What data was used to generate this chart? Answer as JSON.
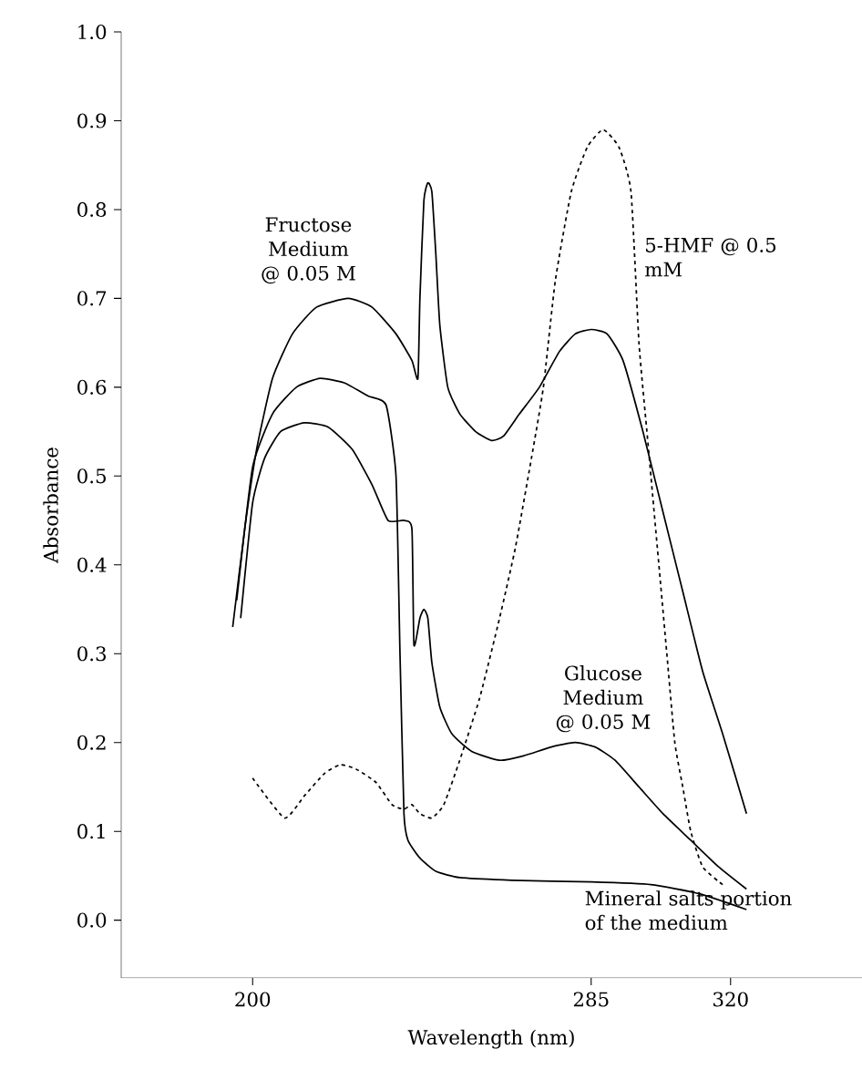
{
  "chart_data": {
    "type": "line",
    "xlabel": "Wavelength (nm)",
    "ylabel": "Absorbance",
    "marker": "none",
    "xlim": [
      167,
      353
    ],
    "ylim": [
      -0.065,
      1.0
    ],
    "xticks": [
      200,
      285,
      320
    ],
    "yticks": [
      {
        "value": 0.0,
        "label": "0.0"
      },
      {
        "value": 0.1,
        "label": "0.1"
      },
      {
        "value": 0.2,
        "label": "0.2"
      },
      {
        "value": 0.3,
        "label": "0.3"
      },
      {
        "value": 0.4,
        "label": "0.4"
      },
      {
        "value": 0.5,
        "label": "0.5"
      },
      {
        "value": 0.6,
        "label": "0.6"
      },
      {
        "value": 0.7,
        "label": "0.7"
      },
      {
        "value": 0.8,
        "label": "0.8"
      },
      {
        "value": 0.9,
        "label": "0.9"
      },
      {
        "value": 1.0,
        "label": "1.0"
      }
    ],
    "series": [
      {
        "name": "Fructose Medium @ 0.05 M",
        "color": "#000000",
        "line_style": "solid",
        "x": [
          195,
          198,
          201,
          205,
          210,
          216,
          224,
          230,
          236,
          240,
          241.5,
          242,
          243,
          244,
          245,
          246,
          247,
          249,
          252,
          256,
          260,
          263,
          267,
          272,
          277,
          281,
          285,
          289,
          293,
          298,
          303,
          308,
          313,
          318,
          324
        ],
        "values": [
          0.33,
          0.44,
          0.53,
          0.61,
          0.66,
          0.69,
          0.7,
          0.69,
          0.66,
          0.63,
          0.61,
          0.7,
          0.81,
          0.83,
          0.82,
          0.75,
          0.67,
          0.6,
          0.57,
          0.55,
          0.54,
          0.545,
          0.57,
          0.6,
          0.64,
          0.66,
          0.665,
          0.66,
          0.63,
          0.55,
          0.46,
          0.37,
          0.28,
          0.21,
          0.12
        ]
      },
      {
        "name": "Glucose Medium @ 0.05 M",
        "color": "#000000",
        "line_style": "solid",
        "x": [
          197,
          200,
          203,
          207,
          213,
          219,
          225,
          230,
          234,
          238,
          240,
          240.5,
          242,
          243,
          244,
          245,
          247,
          250,
          255,
          262,
          268,
          275,
          281,
          286,
          291,
          297,
          303,
          310,
          317,
          324
        ],
        "values": [
          0.34,
          0.47,
          0.52,
          0.55,
          0.56,
          0.555,
          0.53,
          0.49,
          0.45,
          0.45,
          0.44,
          0.31,
          0.34,
          0.35,
          0.34,
          0.29,
          0.24,
          0.21,
          0.19,
          0.18,
          0.185,
          0.195,
          0.2,
          0.195,
          0.18,
          0.15,
          0.12,
          0.09,
          0.06,
          0.035
        ]
      },
      {
        "name": "5-HMF @ 0.5 mM",
        "color": "#000000",
        "line_style": "dashed",
        "x": [
          200,
          208,
          213,
          218,
          222,
          226,
          231,
          235,
          238,
          240,
          242,
          245,
          248,
          252,
          257,
          262,
          266,
          270,
          273,
          276,
          280,
          284,
          288,
          292,
          295,
          297,
          299,
          300,
          302,
          304,
          306,
          308,
          310,
          313,
          318
        ],
        "values": [
          0.16,
          0.115,
          0.14,
          0.165,
          0.175,
          0.17,
          0.155,
          0.13,
          0.125,
          0.13,
          0.12,
          0.115,
          0.13,
          0.18,
          0.25,
          0.34,
          0.42,
          0.52,
          0.6,
          0.72,
          0.82,
          0.87,
          0.89,
          0.87,
          0.82,
          0.65,
          0.55,
          0.5,
          0.4,
          0.3,
          0.2,
          0.15,
          0.1,
          0.06,
          0.04
        ]
      },
      {
        "name": "Mineral salts portion of the medium",
        "color": "#000000",
        "line_style": "solid",
        "x": [
          196,
          200,
          205,
          211,
          217,
          223,
          229,
          233.5,
          236,
          237,
          238,
          239,
          242,
          246,
          252,
          265,
          285,
          300,
          312,
          324
        ],
        "values": [
          0.36,
          0.51,
          0.57,
          0.6,
          0.61,
          0.605,
          0.59,
          0.58,
          0.5,
          0.3,
          0.12,
          0.09,
          0.07,
          0.055,
          0.048,
          0.045,
          0.043,
          0.04,
          0.03,
          0.012
        ]
      }
    ]
  }
}
